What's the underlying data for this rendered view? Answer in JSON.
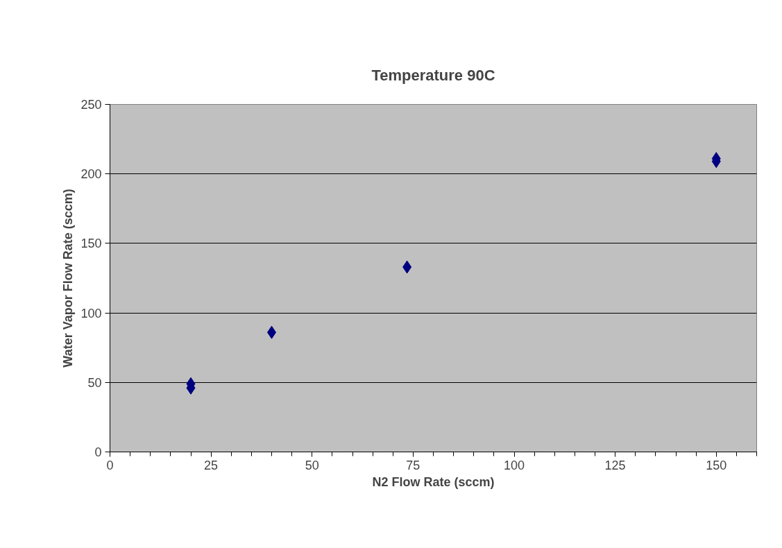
{
  "chart_data": {
    "type": "scatter",
    "title": "Temperature 90C",
    "xlabel": "N2 Flow Rate (sccm)",
    "ylabel": "Water Vapor Flow Rate (sccm)",
    "x": [
      20,
      20,
      40,
      73.5,
      150,
      150
    ],
    "series": [
      {
        "color": "#000080",
        "values": [
          49,
          46,
          86,
          133,
          211,
          209
        ]
      }
    ],
    "xlim": [
      0,
      160
    ],
    "xticks": [
      0,
      25,
      50,
      75,
      100,
      125,
      150
    ],
    "ylim": [
      0,
      250
    ],
    "yticks": [
      0,
      50,
      100,
      150,
      200,
      250
    ],
    "grid": "y",
    "marker": "diamond"
  }
}
